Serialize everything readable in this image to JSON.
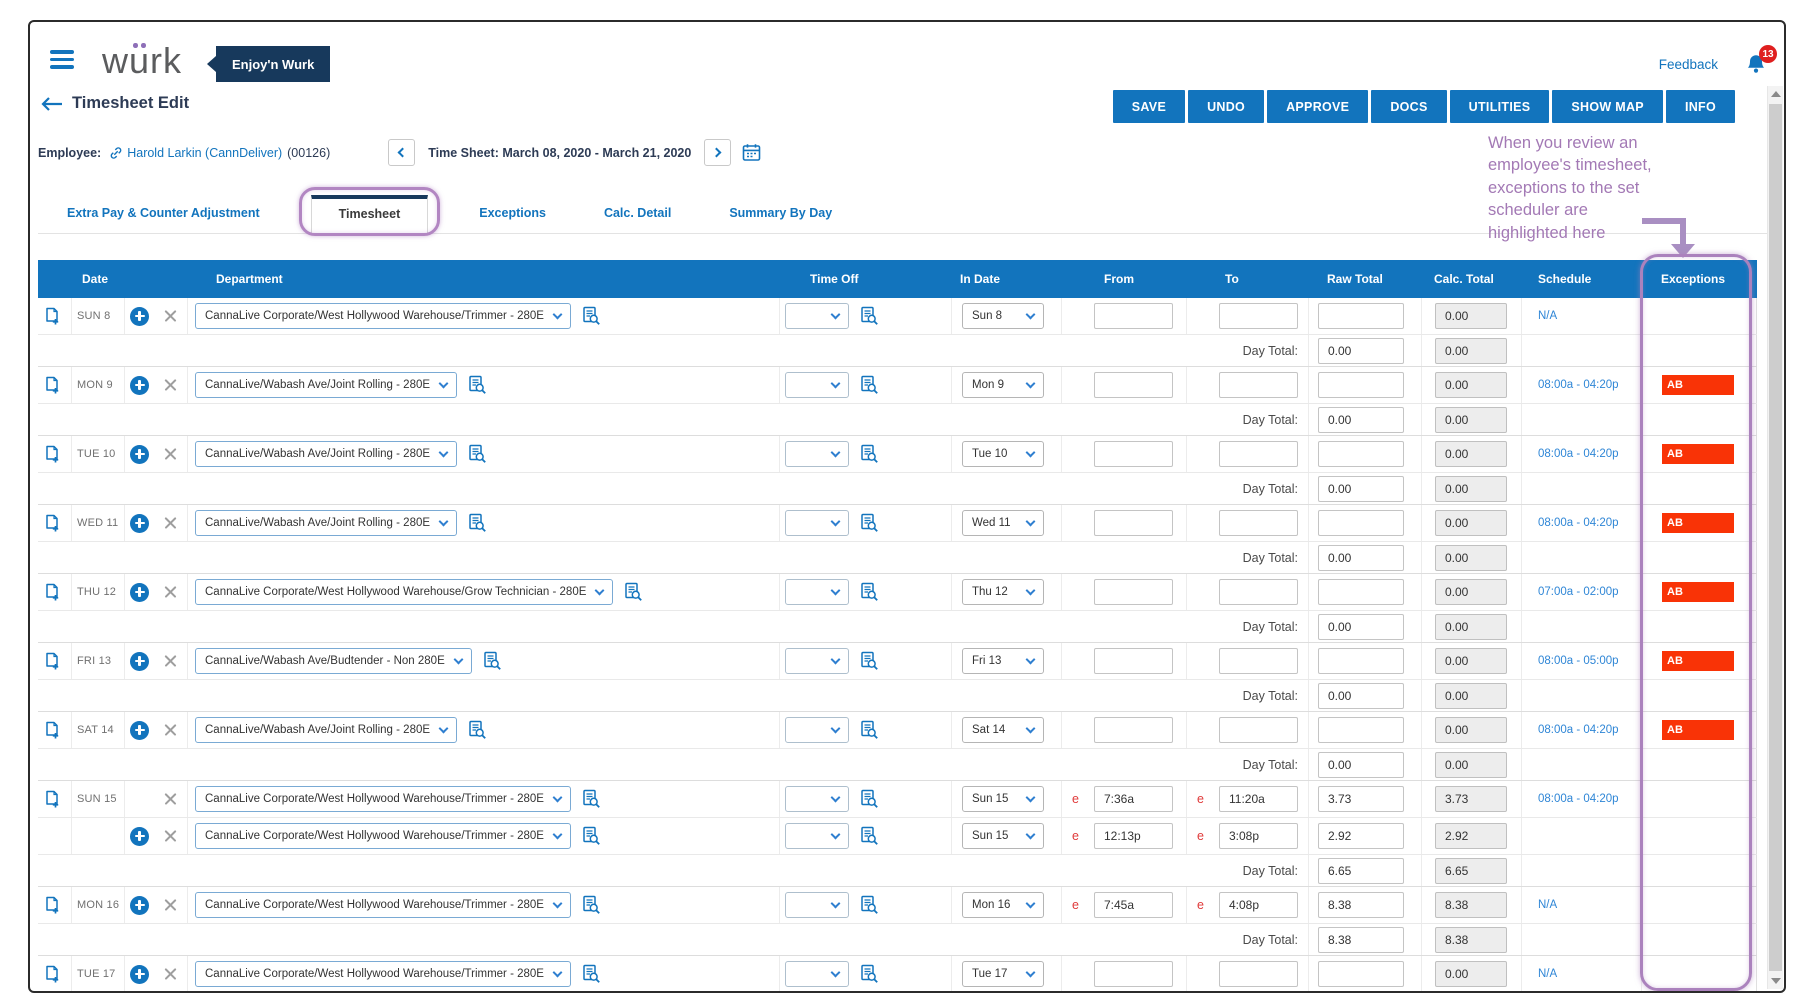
{
  "colors": {
    "accent": "#1274bd",
    "header_navy": "#17395c",
    "exception_red": "#f93306",
    "annotation_purple": "#a379b5",
    "schedule_blue": "#2f86d6"
  },
  "icons": {
    "menu": "hamburger-icon",
    "notifications": "bell-icon",
    "back": "left-arrow-icon",
    "employee_link": "link-icon",
    "calendar": "calendar-icon",
    "copy_row": "copy-add-icon",
    "add_row": "plus-circle-icon",
    "delete_row": "x-icon",
    "lookup": "document-search-icon"
  },
  "topbar": {
    "logo_parts": {
      "w": "w",
      "u": "u",
      "rk": "rk"
    },
    "badge": "Enjoy'n Wurk",
    "feedback": "Feedback",
    "notification_count": "13"
  },
  "header": {
    "title": "Timesheet Edit",
    "buttons": [
      "SAVE",
      "UNDO",
      "APPROVE",
      "DOCS",
      "UTILITIES",
      "SHOW MAP",
      "INFO"
    ]
  },
  "employee": {
    "label": "Employee:",
    "name": "Harold Larkin (CannDeliver)",
    "id": "(00126)"
  },
  "period": {
    "text": "Time Sheet: March 08, 2020 - March 21, 2020"
  },
  "tabs": {
    "items": [
      "Extra Pay & Counter Adjustment",
      "Timesheet",
      "Exceptions",
      "Calc. Detail",
      "Summary By Day"
    ],
    "active": "Timesheet"
  },
  "annotation": {
    "lines": [
      "When you review an",
      "employee's timesheet,",
      "exceptions to the set",
      "scheduler are",
      "highlighted here"
    ]
  },
  "table": {
    "columns": [
      "Date",
      "Department",
      "Time Off",
      "In Date",
      "From",
      "To",
      "Raw Total",
      "Calc. Total",
      "Schedule",
      "Exceptions"
    ],
    "day_total_label": "Day Total:",
    "edited_marker": "e",
    "blocks": [
      {
        "date": "SUN 8",
        "entries": [
          {
            "copy": true,
            "plus": true,
            "department": "CannaLive Corporate/West Hollywood Warehouse/Trimmer - 280E",
            "in_date": "Sun 8",
            "from": "",
            "from_e": false,
            "to": "",
            "to_e": false,
            "raw": "",
            "calc": "0.00",
            "schedule": "N/A",
            "exception": ""
          }
        ],
        "day_total": {
          "raw": "0.00",
          "calc": "0.00"
        }
      },
      {
        "date": "MON 9",
        "entries": [
          {
            "copy": true,
            "plus": true,
            "department": "CannaLive/Wabash Ave/Joint Rolling - 280E",
            "in_date": "Mon 9",
            "from": "",
            "from_e": false,
            "to": "",
            "to_e": false,
            "raw": "",
            "calc": "0.00",
            "schedule": "08:00a - 04:20p",
            "exception": "AB"
          }
        ],
        "day_total": {
          "raw": "0.00",
          "calc": "0.00"
        }
      },
      {
        "date": "TUE 10",
        "entries": [
          {
            "copy": true,
            "plus": true,
            "department": "CannaLive/Wabash Ave/Joint Rolling - 280E",
            "in_date": "Tue 10",
            "from": "",
            "from_e": false,
            "to": "",
            "to_e": false,
            "raw": "",
            "calc": "0.00",
            "schedule": "08:00a - 04:20p",
            "exception": "AB"
          }
        ],
        "day_total": {
          "raw": "0.00",
          "calc": "0.00"
        }
      },
      {
        "date": "WED 11",
        "entries": [
          {
            "copy": true,
            "plus": true,
            "department": "CannaLive/Wabash Ave/Joint Rolling - 280E",
            "in_date": "Wed 11",
            "from": "",
            "from_e": false,
            "to": "",
            "to_e": false,
            "raw": "",
            "calc": "0.00",
            "schedule": "08:00a - 04:20p",
            "exception": "AB"
          }
        ],
        "day_total": {
          "raw": "0.00",
          "calc": "0.00"
        }
      },
      {
        "date": "THU 12",
        "entries": [
          {
            "copy": true,
            "plus": true,
            "department": "CannaLive Corporate/West Hollywood Warehouse/Grow Technician - 280E",
            "in_date": "Thu 12",
            "from": "",
            "from_e": false,
            "to": "",
            "to_e": false,
            "raw": "",
            "calc": "0.00",
            "schedule": "07:00a - 02:00p",
            "exception": "AB"
          }
        ],
        "day_total": {
          "raw": "0.00",
          "calc": "0.00"
        }
      },
      {
        "date": "FRI 13",
        "entries": [
          {
            "copy": true,
            "plus": true,
            "department": "CannaLive/Wabash Ave/Budtender - Non 280E",
            "in_date": "Fri 13",
            "from": "",
            "from_e": false,
            "to": "",
            "to_e": false,
            "raw": "",
            "calc": "0.00",
            "schedule": "08:00a - 05:00p",
            "exception": "AB"
          }
        ],
        "day_total": {
          "raw": "0.00",
          "calc": "0.00"
        }
      },
      {
        "date": "SAT 14",
        "entries": [
          {
            "copy": true,
            "plus": true,
            "department": "CannaLive/Wabash Ave/Joint Rolling - 280E",
            "in_date": "Sat 14",
            "from": "",
            "from_e": false,
            "to": "",
            "to_e": false,
            "raw": "",
            "calc": "0.00",
            "schedule": "08:00a - 04:20p",
            "exception": "AB"
          }
        ],
        "day_total": {
          "raw": "0.00",
          "calc": "0.00"
        }
      },
      {
        "date": "SUN 15",
        "entries": [
          {
            "copy": true,
            "plus": false,
            "department": "CannaLive Corporate/West Hollywood Warehouse/Trimmer - 280E",
            "in_date": "Sun 15",
            "from": "7:36a",
            "from_e": true,
            "to": "11:20a",
            "to_e": true,
            "raw": "3.73",
            "calc": "3.73",
            "schedule": "08:00a - 04:20p",
            "exception": ""
          },
          {
            "copy": false,
            "plus": true,
            "department": "CannaLive Corporate/West Hollywood Warehouse/Trimmer - 280E",
            "in_date": "Sun 15",
            "from": "12:13p",
            "from_e": true,
            "to": "3:08p",
            "to_e": true,
            "raw": "2.92",
            "calc": "2.92",
            "schedule": "",
            "exception": ""
          }
        ],
        "day_total": {
          "raw": "6.65",
          "calc": "6.65"
        }
      },
      {
        "date": "MON 16",
        "entries": [
          {
            "copy": true,
            "plus": true,
            "department": "CannaLive Corporate/West Hollywood Warehouse/Trimmer - 280E",
            "in_date": "Mon 16",
            "from": "7:45a",
            "from_e": true,
            "to": "4:08p",
            "to_e": true,
            "raw": "8.38",
            "calc": "8.38",
            "schedule": "N/A",
            "exception": ""
          }
        ],
        "day_total": {
          "raw": "8.38",
          "calc": "8.38"
        }
      },
      {
        "date": "TUE 17",
        "entries": [
          {
            "copy": true,
            "plus": true,
            "department": "CannaLive Corporate/West Hollywood Warehouse/Trimmer - 280E",
            "in_date": "Tue 17",
            "from": "",
            "from_e": false,
            "to": "",
            "to_e": false,
            "raw": "",
            "calc": "0.00",
            "schedule": "N/A",
            "exception": ""
          }
        ],
        "day_total": null
      }
    ]
  }
}
